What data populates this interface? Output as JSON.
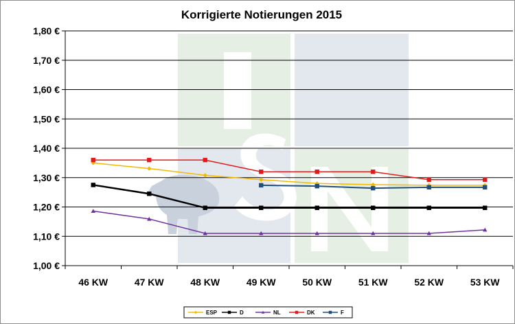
{
  "chart_data": {
    "type": "line",
    "title": "Korrigierte Notierungen 2015",
    "xlabel": "",
    "ylabel": "",
    "categories": [
      "46 KW",
      "47 KW",
      "48 KW",
      "49 KW",
      "50 KW",
      "51 KW",
      "52 KW",
      "53 KW"
    ],
    "y_ticks": [
      "1,00 €",
      "1,10 €",
      "1,20 €",
      "1,30 €",
      "1,40 €",
      "1,50 €",
      "1,60 €",
      "1,70 €",
      "1,80 €"
    ],
    "ylim": [
      1.0,
      1.8
    ],
    "grid": true,
    "legend_position": "bottom",
    "watermark": "ISN",
    "series": [
      {
        "name": "ESP",
        "color": "#f5b800",
        "marker": "diamond",
        "values": [
          1.35,
          1.331,
          1.308,
          1.293,
          1.28,
          1.276,
          1.274,
          1.274
        ]
      },
      {
        "name": "D",
        "color": "#000000",
        "marker": "square",
        "values": [
          1.275,
          1.245,
          1.197,
          1.197,
          1.197,
          1.197,
          1.197,
          1.197
        ]
      },
      {
        "name": "NL",
        "color": "#7030a0",
        "marker": "triangle",
        "values": [
          1.186,
          1.159,
          1.11,
          1.11,
          1.11,
          1.11,
          1.11,
          1.122
        ]
      },
      {
        "name": "DK",
        "color": "#e31a1c",
        "marker": "square",
        "values": [
          1.36,
          1.36,
          1.36,
          1.32,
          1.32,
          1.32,
          1.293,
          1.293
        ]
      },
      {
        "name": "F",
        "color": "#1f4e79",
        "marker": "square",
        "values": [
          null,
          null,
          null,
          1.274,
          1.271,
          1.264,
          1.267,
          1.267
        ]
      }
    ]
  }
}
